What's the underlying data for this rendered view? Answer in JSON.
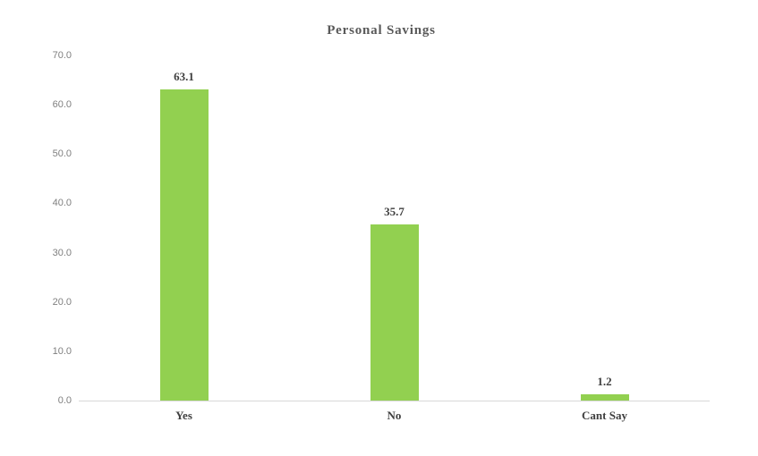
{
  "chart_data": {
    "type": "bar",
    "title": "Personal Savings",
    "categories": [
      "Yes",
      "No",
      "Cant Say"
    ],
    "values": [
      63.1,
      35.7,
      1.2
    ],
    "data_labels": [
      "63.1",
      "35.7",
      "1.2"
    ],
    "xlabel": "",
    "ylabel": "",
    "y_ticks": [
      "70.0",
      "60.0",
      "50.0",
      "40.0",
      "30.0",
      "20.0",
      "10.0",
      "0.0"
    ],
    "y_tick_values": [
      70,
      60,
      50,
      40,
      30,
      20,
      10,
      0
    ],
    "ylim": [
      0,
      70
    ],
    "grid": false,
    "legend_position": "none",
    "colors": {
      "bar_fill": "#92d050",
      "title_text": "#595959",
      "tick_text": "#7f7f7f",
      "label_text": "#3f3f3f",
      "axis_line": "#d9d9d9",
      "background": "#ffffff"
    }
  }
}
